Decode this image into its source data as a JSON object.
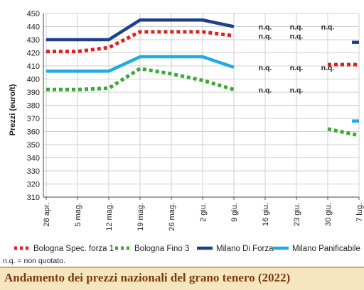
{
  "chart_data": {
    "type": "line",
    "title": "Andamento dei prezzi nazionali del grano tenero (2022)",
    "ylabel": "Prezzi (euro/t)",
    "xlabel": "",
    "ylim": [
      310,
      450
    ],
    "yticks": [
      310,
      320,
      330,
      340,
      350,
      360,
      370,
      380,
      390,
      400,
      410,
      420,
      430,
      440,
      450
    ],
    "categories": [
      "28 apr.",
      "5 mag.",
      "12 mag.",
      "19 mag.",
      "26 mag.",
      "2 giu.",
      "9 giu.",
      "16 giu.",
      "23 giu.",
      "30 giu.",
      "7 lug."
    ],
    "grid": true,
    "legend_position": "bottom",
    "series": [
      {
        "name": "Bologna Spec. forza 1",
        "color": "#e0201f",
        "style": "dotted",
        "values": [
          421,
          421,
          424,
          436,
          436,
          436,
          433,
          null,
          null,
          411,
          411
        ]
      },
      {
        "name": "Bologna Fino 3",
        "color": "#3aa935",
        "style": "dotted",
        "values": [
          392,
          392,
          393,
          408,
          404,
          399,
          392,
          null,
          null,
          362,
          357
        ]
      },
      {
        "name": "Milano Di Forza",
        "color": "#1e3f8c",
        "style": "solid",
        "values": [
          430,
          430,
          430,
          445,
          445,
          445,
          440,
          null,
          null,
          null,
          428
        ]
      },
      {
        "name": "Milano Panificabile",
        "color": "#1eace2",
        "style": "solid",
        "values": [
          406,
          406,
          406,
          417,
          417,
          417,
          409,
          null,
          null,
          null,
          368
        ]
      }
    ],
    "annotations": [
      {
        "text": "n.q.",
        "x": "16 giu.",
        "y": 440
      },
      {
        "text": "n.q.",
        "x": "23 giu.",
        "y": 440
      },
      {
        "text": "n.q.",
        "x": "30 giu.",
        "y": 440
      },
      {
        "text": "n.q.",
        "x": "16 giu.",
        "y": 433
      },
      {
        "text": "n.q.",
        "x": "23 giu.",
        "y": 433
      },
      {
        "text": "n.q.",
        "x": "16 giu.",
        "y": 409
      },
      {
        "text": "n.q.",
        "x": "23 giu.",
        "y": 409
      },
      {
        "text": "n.q.",
        "x": "30 giu.",
        "y": 409
      },
      {
        "text": "n.q.",
        "x": "16 giu.",
        "y": 392
      },
      {
        "text": "n.q.",
        "x": "23 giu.",
        "y": 392
      }
    ]
  },
  "footnote": "n.q. = non quotato.",
  "title_bar": {
    "title": "Andamento dei prezzi nazionali del grano tenero (2022)"
  }
}
